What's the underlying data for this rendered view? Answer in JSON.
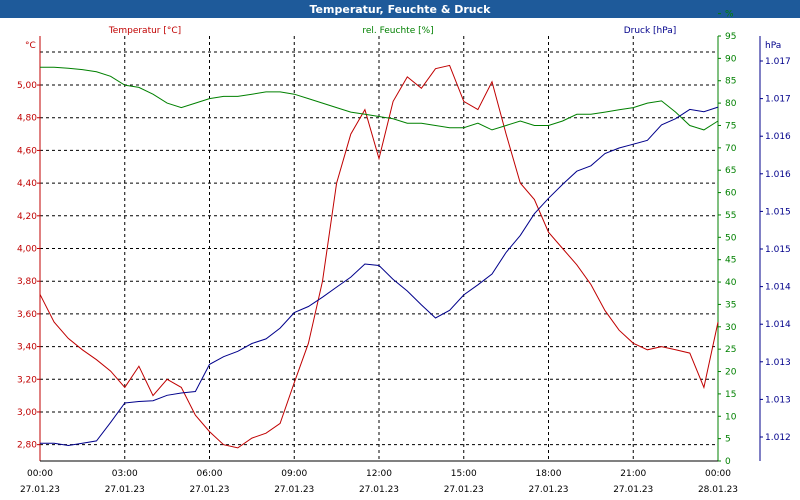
{
  "title": "Temperatur, Feuchte & Druck",
  "chart_data": {
    "type": "line",
    "x_ticks": [
      {
        "time": "00:00",
        "date": "27.01.23"
      },
      {
        "time": "03:00",
        "date": "27.01.23"
      },
      {
        "time": "06:00",
        "date": "27.01.23"
      },
      {
        "time": "09:00",
        "date": "27.01.23"
      },
      {
        "time": "12:00",
        "date": "27.01.23"
      },
      {
        "time": "15:00",
        "date": "27.01.23"
      },
      {
        "time": "18:00",
        "date": "27.01.23"
      },
      {
        "time": "21:00",
        "date": "27.01.23"
      },
      {
        "time": "00:00",
        "date": "28.01.23"
      }
    ],
    "xlim_hours": [
      0,
      24
    ],
    "grid": true,
    "axes": {
      "temperature": {
        "unit": "°C",
        "label": "Temperatur [°C]",
        "color": "#c00000",
        "ylim": [
          2.7,
          5.3
        ],
        "ticks": [
          "2,80",
          "3,00",
          "3,20",
          "3,40",
          "3,60",
          "3,80",
          "4,00",
          "4,20",
          "4,40",
          "4,60",
          "4,80",
          "5,00"
        ]
      },
      "humidity": {
        "unit": "%",
        "label": "rel. Feuchte [%]",
        "color": "#008000",
        "ylim": [
          0,
          95
        ],
        "ticks": [
          "0",
          "5",
          "10",
          "15",
          "20",
          "25",
          "30",
          "35",
          "40",
          "45",
          "50",
          "55",
          "60",
          "65",
          "70",
          "75",
          "80",
          "85",
          "90",
          "95",
          "%"
        ]
      },
      "pressure": {
        "unit": "hPa",
        "label": "Druck [hPa]",
        "color": "#00008b",
        "ylim": [
          1011.7,
          1017.2
        ],
        "ticks": [
          "1.012",
          "1.013",
          "1.013",
          "1.014",
          "1.014",
          "1.015",
          "1.015",
          "1.016",
          "1.016",
          "1.017",
          "1.017"
        ]
      }
    },
    "series": [
      {
        "name": "Temperatur [°C]",
        "axis": "temperature",
        "color": "#c00000",
        "x": [
          0,
          0.5,
          1,
          1.5,
          2,
          2.5,
          3,
          3.5,
          4,
          4.5,
          5,
          5.5,
          6,
          6.5,
          7,
          7.5,
          8,
          8.5,
          9,
          9.5,
          10,
          10.5,
          11,
          11.5,
          12,
          12.5,
          13,
          13.5,
          14,
          14.5,
          15,
          15.5,
          16,
          16.5,
          17,
          17.5,
          18,
          18.5,
          19,
          19.5,
          20,
          20.5,
          21,
          21.5,
          22,
          22.5,
          23,
          23.5,
          24
        ],
        "values": [
          3.72,
          3.55,
          3.45,
          3.38,
          3.32,
          3.25,
          3.15,
          3.28,
          3.1,
          3.2,
          3.15,
          2.98,
          2.88,
          2.8,
          2.78,
          2.84,
          2.87,
          2.93,
          3.18,
          3.42,
          3.8,
          4.4,
          4.7,
          4.85,
          4.55,
          4.9,
          5.05,
          4.98,
          5.1,
          5.12,
          4.9,
          4.85,
          5.02,
          4.7,
          4.4,
          4.3,
          4.1,
          4.0,
          3.9,
          3.78,
          3.62,
          3.5,
          3.42,
          3.38,
          3.4,
          3.38,
          3.36,
          3.15,
          3.55
        ]
      },
      {
        "name": "rel. Feuchte [%]",
        "axis": "humidity",
        "color": "#008000",
        "x": [
          0,
          0.5,
          1,
          1.5,
          2,
          2.5,
          3,
          3.5,
          4,
          4.5,
          5,
          5.5,
          6,
          6.5,
          7,
          7.5,
          8,
          8.5,
          9,
          9.5,
          10,
          10.5,
          11,
          11.5,
          12,
          12.5,
          13,
          13.5,
          14,
          14.5,
          15,
          15.5,
          16,
          16.5,
          17,
          17.5,
          18,
          18.5,
          19,
          19.5,
          20,
          20.5,
          21,
          21.5,
          22,
          22.5,
          23,
          23.5,
          24
        ],
        "values": [
          88,
          88,
          87.8,
          87.5,
          87,
          86,
          84,
          83.5,
          82,
          80,
          79,
          80,
          81,
          81.5,
          81.5,
          82,
          82.5,
          82.5,
          82,
          81,
          80,
          79,
          78,
          77.5,
          77,
          76.5,
          75.5,
          75.5,
          75,
          74.5,
          74.5,
          75.5,
          74,
          75,
          76,
          75,
          75,
          76,
          77.5,
          77.5,
          78,
          78.5,
          79,
          80,
          80.5,
          78,
          75,
          74,
          76
        ]
      },
      {
        "name": "Druck [hPa]",
        "axis": "pressure",
        "color": "#00008b",
        "x": [
          0,
          0.5,
          1,
          1.5,
          2,
          2.5,
          3,
          3.5,
          4,
          4.5,
          5,
          5.5,
          6,
          6.5,
          7,
          7.5,
          8,
          8.5,
          9,
          9.5,
          10,
          10.5,
          11,
          11.5,
          12,
          12.5,
          13,
          13.5,
          14,
          14.5,
          15,
          15.5,
          16,
          16.5,
          17,
          17.5,
          18,
          18.5,
          19,
          19.5,
          20,
          20.5,
          21,
          21.5,
          22,
          22.5,
          23,
          23.5,
          24
        ],
        "values": [
          1011.93,
          1011.93,
          1011.9,
          1011.93,
          1011.96,
          1012.2,
          1012.45,
          1012.47,
          1012.48,
          1012.55,
          1012.58,
          1012.6,
          1012.95,
          1013.05,
          1013.12,
          1013.22,
          1013.28,
          1013.42,
          1013.62,
          1013.7,
          1013.82,
          1013.95,
          1014.08,
          1014.25,
          1014.23,
          1014.05,
          1013.9,
          1013.72,
          1013.55,
          1013.65,
          1013.85,
          1013.98,
          1014.12,
          1014.4,
          1014.62,
          1014.9,
          1015.1,
          1015.28,
          1015.45,
          1015.52,
          1015.68,
          1015.75,
          1015.8,
          1015.85,
          1016.05,
          1016.13,
          1016.25,
          1016.22,
          1016.28
        ]
      }
    ]
  }
}
